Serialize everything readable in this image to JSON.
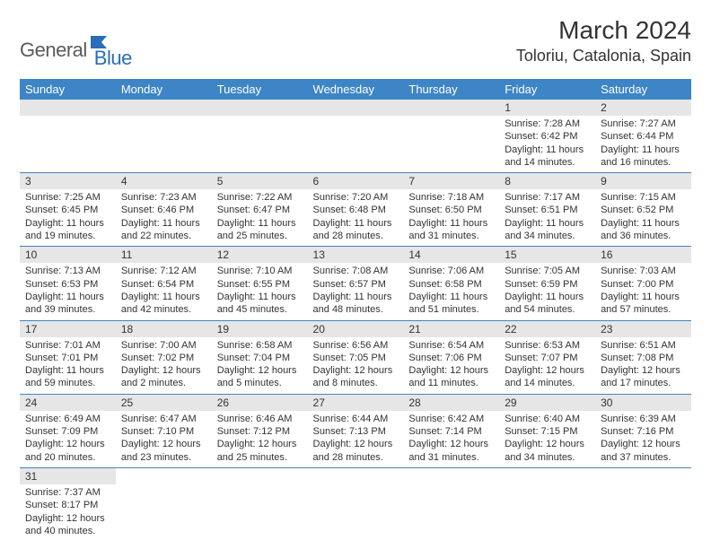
{
  "logo": {
    "text1": "General",
    "text2": "Blue"
  },
  "title": "March 2024",
  "location": "Toloriu, Catalonia, Spain",
  "colors": {
    "header_bg": "#3d85c6",
    "header_text": "#ffffff",
    "daynum_bg": "#e6e6e6",
    "border": "#3d85c6",
    "logo_gray": "#5a5a5a",
    "logo_blue": "#2a6db8"
  },
  "weekdays": [
    "Sunday",
    "Monday",
    "Tuesday",
    "Wednesday",
    "Thursday",
    "Friday",
    "Saturday"
  ],
  "weeks": [
    [
      {
        "empty": true
      },
      {
        "empty": true
      },
      {
        "empty": true
      },
      {
        "empty": true
      },
      {
        "empty": true
      },
      {
        "num": "1",
        "sunrise": "Sunrise: 7:28 AM",
        "sunset": "Sunset: 6:42 PM",
        "daylight": "Daylight: 11 hours and 14 minutes."
      },
      {
        "num": "2",
        "sunrise": "Sunrise: 7:27 AM",
        "sunset": "Sunset: 6:44 PM",
        "daylight": "Daylight: 11 hours and 16 minutes."
      }
    ],
    [
      {
        "num": "3",
        "sunrise": "Sunrise: 7:25 AM",
        "sunset": "Sunset: 6:45 PM",
        "daylight": "Daylight: 11 hours and 19 minutes."
      },
      {
        "num": "4",
        "sunrise": "Sunrise: 7:23 AM",
        "sunset": "Sunset: 6:46 PM",
        "daylight": "Daylight: 11 hours and 22 minutes."
      },
      {
        "num": "5",
        "sunrise": "Sunrise: 7:22 AM",
        "sunset": "Sunset: 6:47 PM",
        "daylight": "Daylight: 11 hours and 25 minutes."
      },
      {
        "num": "6",
        "sunrise": "Sunrise: 7:20 AM",
        "sunset": "Sunset: 6:48 PM",
        "daylight": "Daylight: 11 hours and 28 minutes."
      },
      {
        "num": "7",
        "sunrise": "Sunrise: 7:18 AM",
        "sunset": "Sunset: 6:50 PM",
        "daylight": "Daylight: 11 hours and 31 minutes."
      },
      {
        "num": "8",
        "sunrise": "Sunrise: 7:17 AM",
        "sunset": "Sunset: 6:51 PM",
        "daylight": "Daylight: 11 hours and 34 minutes."
      },
      {
        "num": "9",
        "sunrise": "Sunrise: 7:15 AM",
        "sunset": "Sunset: 6:52 PM",
        "daylight": "Daylight: 11 hours and 36 minutes."
      }
    ],
    [
      {
        "num": "10",
        "sunrise": "Sunrise: 7:13 AM",
        "sunset": "Sunset: 6:53 PM",
        "daylight": "Daylight: 11 hours and 39 minutes."
      },
      {
        "num": "11",
        "sunrise": "Sunrise: 7:12 AM",
        "sunset": "Sunset: 6:54 PM",
        "daylight": "Daylight: 11 hours and 42 minutes."
      },
      {
        "num": "12",
        "sunrise": "Sunrise: 7:10 AM",
        "sunset": "Sunset: 6:55 PM",
        "daylight": "Daylight: 11 hours and 45 minutes."
      },
      {
        "num": "13",
        "sunrise": "Sunrise: 7:08 AM",
        "sunset": "Sunset: 6:57 PM",
        "daylight": "Daylight: 11 hours and 48 minutes."
      },
      {
        "num": "14",
        "sunrise": "Sunrise: 7:06 AM",
        "sunset": "Sunset: 6:58 PM",
        "daylight": "Daylight: 11 hours and 51 minutes."
      },
      {
        "num": "15",
        "sunrise": "Sunrise: 7:05 AM",
        "sunset": "Sunset: 6:59 PM",
        "daylight": "Daylight: 11 hours and 54 minutes."
      },
      {
        "num": "16",
        "sunrise": "Sunrise: 7:03 AM",
        "sunset": "Sunset: 7:00 PM",
        "daylight": "Daylight: 11 hours and 57 minutes."
      }
    ],
    [
      {
        "num": "17",
        "sunrise": "Sunrise: 7:01 AM",
        "sunset": "Sunset: 7:01 PM",
        "daylight": "Daylight: 11 hours and 59 minutes."
      },
      {
        "num": "18",
        "sunrise": "Sunrise: 7:00 AM",
        "sunset": "Sunset: 7:02 PM",
        "daylight": "Daylight: 12 hours and 2 minutes."
      },
      {
        "num": "19",
        "sunrise": "Sunrise: 6:58 AM",
        "sunset": "Sunset: 7:04 PM",
        "daylight": "Daylight: 12 hours and 5 minutes."
      },
      {
        "num": "20",
        "sunrise": "Sunrise: 6:56 AM",
        "sunset": "Sunset: 7:05 PM",
        "daylight": "Daylight: 12 hours and 8 minutes."
      },
      {
        "num": "21",
        "sunrise": "Sunrise: 6:54 AM",
        "sunset": "Sunset: 7:06 PM",
        "daylight": "Daylight: 12 hours and 11 minutes."
      },
      {
        "num": "22",
        "sunrise": "Sunrise: 6:53 AM",
        "sunset": "Sunset: 7:07 PM",
        "daylight": "Daylight: 12 hours and 14 minutes."
      },
      {
        "num": "23",
        "sunrise": "Sunrise: 6:51 AM",
        "sunset": "Sunset: 7:08 PM",
        "daylight": "Daylight: 12 hours and 17 minutes."
      }
    ],
    [
      {
        "num": "24",
        "sunrise": "Sunrise: 6:49 AM",
        "sunset": "Sunset: 7:09 PM",
        "daylight": "Daylight: 12 hours and 20 minutes."
      },
      {
        "num": "25",
        "sunrise": "Sunrise: 6:47 AM",
        "sunset": "Sunset: 7:10 PM",
        "daylight": "Daylight: 12 hours and 23 minutes."
      },
      {
        "num": "26",
        "sunrise": "Sunrise: 6:46 AM",
        "sunset": "Sunset: 7:12 PM",
        "daylight": "Daylight: 12 hours and 25 minutes."
      },
      {
        "num": "27",
        "sunrise": "Sunrise: 6:44 AM",
        "sunset": "Sunset: 7:13 PM",
        "daylight": "Daylight: 12 hours and 28 minutes."
      },
      {
        "num": "28",
        "sunrise": "Sunrise: 6:42 AM",
        "sunset": "Sunset: 7:14 PM",
        "daylight": "Daylight: 12 hours and 31 minutes."
      },
      {
        "num": "29",
        "sunrise": "Sunrise: 6:40 AM",
        "sunset": "Sunset: 7:15 PM",
        "daylight": "Daylight: 12 hours and 34 minutes."
      },
      {
        "num": "30",
        "sunrise": "Sunrise: 6:39 AM",
        "sunset": "Sunset: 7:16 PM",
        "daylight": "Daylight: 12 hours and 37 minutes."
      }
    ],
    [
      {
        "num": "31",
        "sunrise": "Sunrise: 7:37 AM",
        "sunset": "Sunset: 8:17 PM",
        "daylight": "Daylight: 12 hours and 40 minutes."
      },
      {
        "empty": true
      },
      {
        "empty": true
      },
      {
        "empty": true
      },
      {
        "empty": true
      },
      {
        "empty": true
      },
      {
        "empty": true
      }
    ]
  ]
}
